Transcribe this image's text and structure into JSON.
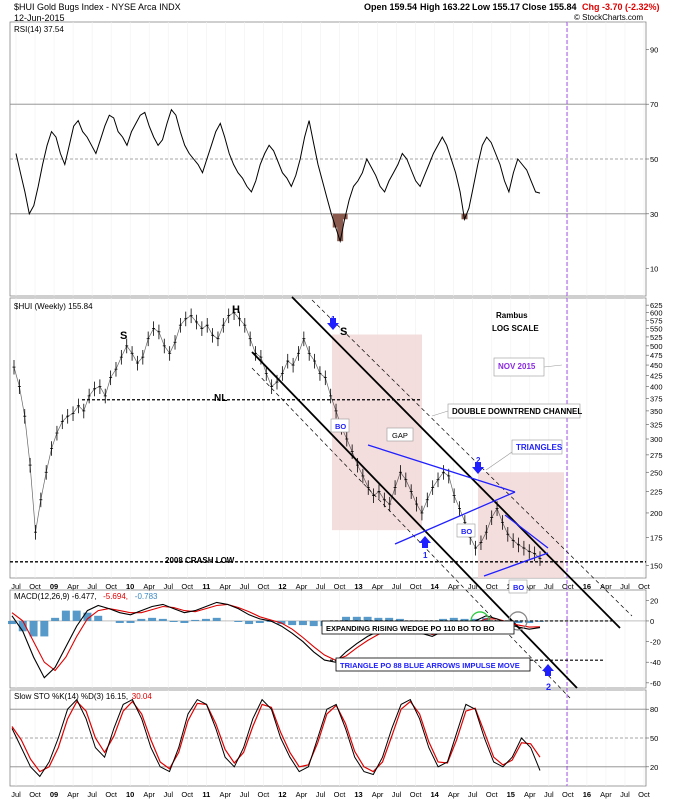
{
  "header": {
    "symbol_title": "$HUI Gold Bugs Index - NYSE Arca INDX",
    "date": "12-Jun-2015",
    "quote_open": "Open 159.54",
    "quote_high": "High 163.22",
    "quote_low": "Low 155.17",
    "quote_close": "Close 155.84",
    "quote_change": "Chg -3.70 (-2.32%)",
    "change_color": "#e00000",
    "credit": "© StockCharts.com"
  },
  "chart_data": [
    {
      "type": "line",
      "panel": "rsi",
      "legend": "RSI(14) 37.54",
      "ylim": [
        0,
        100
      ],
      "ticks": [
        10,
        30,
        50,
        70,
        90
      ],
      "reference_lines": [
        30,
        50,
        70
      ],
      "series": [
        {
          "values": [
            52,
            45,
            38,
            30,
            33,
            40,
            48,
            55,
            60,
            58,
            52,
            48,
            55,
            62,
            64,
            60,
            58,
            55,
            52,
            57,
            62,
            66,
            65,
            60,
            58,
            55,
            60,
            63,
            66,
            67,
            62,
            58,
            55,
            57,
            63,
            68,
            66,
            60,
            55,
            52,
            50,
            48,
            45,
            50,
            55,
            60,
            63,
            58,
            52,
            48,
            45,
            43,
            40,
            38,
            42,
            48,
            52,
            55,
            53,
            49,
            45,
            43,
            40,
            44,
            50,
            58,
            64,
            56,
            48,
            42,
            36,
            30,
            25,
            20,
            28,
            35,
            40,
            42,
            45,
            50,
            47,
            44,
            40,
            38,
            42,
            45,
            48,
            52,
            50,
            46,
            42,
            40,
            44,
            48,
            52,
            55,
            58,
            55,
            50,
            45,
            38,
            28,
            32,
            40,
            48,
            55,
            58,
            56,
            52,
            48,
            42,
            38,
            45,
            50,
            48,
            46,
            42,
            38,
            37.54
          ]
        }
      ],
      "fills_below": {
        "level": 30,
        "color": "#8a5a4e"
      }
    },
    {
      "type": "line",
      "panel": "price",
      "legend": "$HUI (Weekly) 155.84",
      "scale": "log",
      "ylim": [
        140,
        650
      ],
      "ticks": [
        150,
        175,
        200,
        225,
        250,
        275,
        300,
        325,
        350,
        375,
        400,
        425,
        450,
        475,
        500,
        525,
        550,
        575,
        600,
        625
      ],
      "x_labels": [
        "Jul",
        "Oct",
        "09",
        "Apr",
        "Jul",
        "Oct",
        "10",
        "Apr",
        "Jul",
        "Oct",
        "11",
        "Apr",
        "Jul",
        "Oct",
        "12",
        "Apr",
        "Jul",
        "Oct",
        "13",
        "Apr",
        "Jul",
        "Oct",
        "14",
        "Apr",
        "Jul",
        "Oct",
        "15",
        "Apr",
        "Jul",
        "Oct",
        "16",
        "Apr",
        "Jul",
        "Oct"
      ],
      "series": [
        {
          "name": "$HUI",
          "values": [
            445,
            400,
            340,
            260,
            180,
            215,
            250,
            285,
            310,
            330,
            340,
            345,
            360,
            350,
            380,
            395,
            400,
            380,
            420,
            440,
            470,
            500,
            480,
            455,
            470,
            520,
            550,
            540,
            500,
            480,
            510,
            560,
            580,
            590,
            570,
            550,
            560,
            530,
            520,
            560,
            590,
            600,
            580,
            560,
            520,
            480,
            470,
            430,
            400,
            410,
            430,
            460,
            450,
            480,
            520,
            480,
            460,
            430,
            420,
            380,
            350,
            320,
            300,
            280,
            260,
            245,
            230,
            220,
            225,
            215,
            210,
            230,
            250,
            240,
            225,
            210,
            200,
            215,
            230,
            240,
            250,
            245,
            220,
            205,
            190,
            175,
            165,
            170,
            180,
            195,
            205,
            190,
            178,
            172,
            168,
            165,
            162,
            160,
            155.84
          ]
        }
      ],
      "annotations": [
        "S",
        "H",
        "S",
        "NL",
        "Rambus",
        "LOG SCALE",
        "NOV 2015",
        "DOUBLE DOWNTREND CHANNEL",
        "TRIANGLES",
        "GAP",
        "BO",
        "BO",
        "BO",
        "1",
        "1",
        "2",
        "2",
        "1",
        "2008 CRASH LOW"
      ]
    },
    {
      "type": "line",
      "panel": "macd",
      "legend": [
        "MACD(12,26,9) -6.477,",
        "-5.694,",
        "-0.783"
      ],
      "legend_colors": [
        "#000000",
        "#e00000",
        "#3a88c0"
      ],
      "ylim": [
        -65,
        30
      ],
      "ticks": [
        -60,
        -40,
        -20,
        0,
        20
      ],
      "series": [
        {
          "name": "MACD",
          "values": [
            5,
            -10,
            -35,
            -55,
            -45,
            -25,
            -5,
            10,
            15,
            12,
            8,
            6,
            10,
            14,
            16,
            12,
            8,
            10,
            14,
            18,
            16,
            12,
            6,
            2,
            0,
            -5,
            -12,
            -20,
            -30,
            -38,
            -40,
            -30,
            -22,
            -15,
            -10,
            -5,
            -3,
            -8,
            -12,
            -15,
            -10,
            -5,
            -3,
            0,
            5,
            2,
            -3,
            -6,
            -8,
            -6.477
          ]
        },
        {
          "name": "Signal",
          "values": [
            8,
            0,
            -20,
            -40,
            -48,
            -35,
            -15,
            2,
            10,
            12,
            10,
            8,
            8,
            11,
            14,
            13,
            10,
            9,
            12,
            15,
            16,
            13,
            9,
            4,
            1,
            -2,
            -8,
            -16,
            -25,
            -33,
            -38,
            -34,
            -26,
            -19,
            -13,
            -8,
            -5,
            -6,
            -10,
            -13,
            -12,
            -8,
            -5,
            -2,
            2,
            2,
            -1,
            -4,
            -6,
            -5.694
          ]
        },
        {
          "name": "Histogram",
          "values": [
            -3,
            -10,
            -15,
            -15,
            3,
            10,
            10,
            8,
            5,
            0,
            -2,
            -2,
            2,
            3,
            2,
            -1,
            -2,
            1,
            2,
            3,
            0,
            -1,
            -3,
            -2,
            -1,
            -3,
            -4,
            -4,
            -5,
            -5,
            -2,
            4,
            4,
            4,
            3,
            3,
            2,
            -2,
            -2,
            -2,
            2,
            3,
            2,
            2,
            3,
            0,
            -2,
            -2,
            -2,
            -0.783
          ]
        }
      ],
      "annotations": [
        "EXPANDING RISING WEDGE PO 110 BO TO BO",
        "TRIANGLE PO 88 BLUE ARROWS IMPULSE MOVE",
        "2"
      ]
    },
    {
      "type": "line",
      "panel": "stochastic",
      "legend": [
        "Slow STO %K(14) %D(3) 16.15,",
        "30.04"
      ],
      "legend_colors": [
        "#000000",
        "#e00000"
      ],
      "ylim": [
        0,
        100
      ],
      "ticks": [
        20,
        50,
        80
      ],
      "reference_lines": [
        20,
        50,
        80
      ],
      "series": [
        {
          "name": "%K",
          "values": [
            60,
            40,
            20,
            10,
            25,
            50,
            80,
            90,
            70,
            40,
            30,
            60,
            85,
            90,
            70,
            40,
            20,
            15,
            40,
            75,
            90,
            85,
            60,
            30,
            20,
            40,
            70,
            90,
            80,
            50,
            30,
            15,
            20,
            50,
            80,
            85,
            60,
            30,
            15,
            12,
            30,
            60,
            85,
            90,
            70,
            40,
            20,
            25,
            55,
            85,
            80,
            50,
            25,
            20,
            30,
            50,
            40,
            16.15
          ]
        },
        {
          "name": "%D",
          "values": [
            62,
            48,
            28,
            15,
            20,
            40,
            70,
            88,
            78,
            50,
            35,
            52,
            78,
            88,
            75,
            48,
            25,
            18,
            35,
            68,
            86,
            85,
            65,
            38,
            24,
            35,
            62,
            85,
            82,
            56,
            35,
            20,
            22,
            45,
            75,
            84,
            65,
            36,
            20,
            15,
            25,
            52,
            80,
            88,
            75,
            46,
            25,
            24,
            48,
            78,
            81,
            56,
            30,
            22,
            27,
            45,
            44,
            30.04
          ]
        }
      ]
    }
  ]
}
